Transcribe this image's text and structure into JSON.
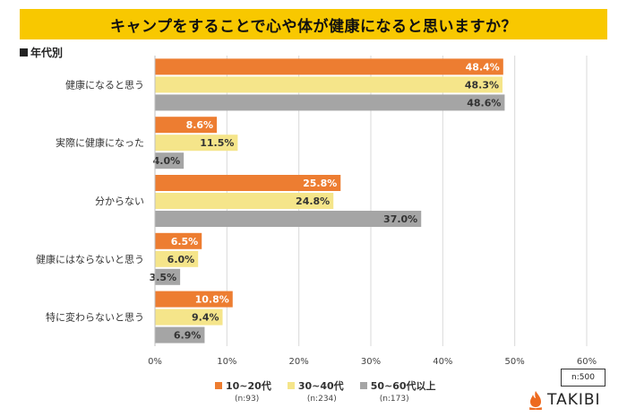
{
  "title": "キャンプをすることで心や体が健康になると思いますか？",
  "subtitle": "年代別",
  "sample_total": "n:500",
  "brand": "TAKIBI",
  "colors": {
    "title_bg": "#f8c800",
    "s1": "#ed7d31",
    "s2": "#f5e58a",
    "s3": "#a5a5a5"
  },
  "chart_data": {
    "type": "bar",
    "orientation": "horizontal",
    "title": "キャンプをすることで心や体が健康になると思いますか？",
    "categories": [
      "健康になると思う",
      "実際に健康になった",
      "分からない",
      "健康にはならないと思う",
      "特に変わらないと思う"
    ],
    "series": [
      {
        "name": "10~20代",
        "n": "(n:93)",
        "values": [
          48.4,
          8.6,
          25.8,
          6.5,
          10.8
        ]
      },
      {
        "name": "30~40代",
        "n": "(n:234)",
        "values": [
          48.3,
          11.5,
          24.8,
          6.0,
          9.4
        ]
      },
      {
        "name": "50~60代以上",
        "n": "(n:173)",
        "values": [
          48.6,
          4.0,
          37.0,
          3.5,
          6.9
        ]
      }
    ],
    "xlim": [
      0,
      60
    ],
    "ticks": [
      0,
      10,
      20,
      30,
      40,
      50,
      60
    ],
    "tick_format": "%",
    "value_format": "0.0%",
    "grid": true,
    "legend": "bottom"
  }
}
